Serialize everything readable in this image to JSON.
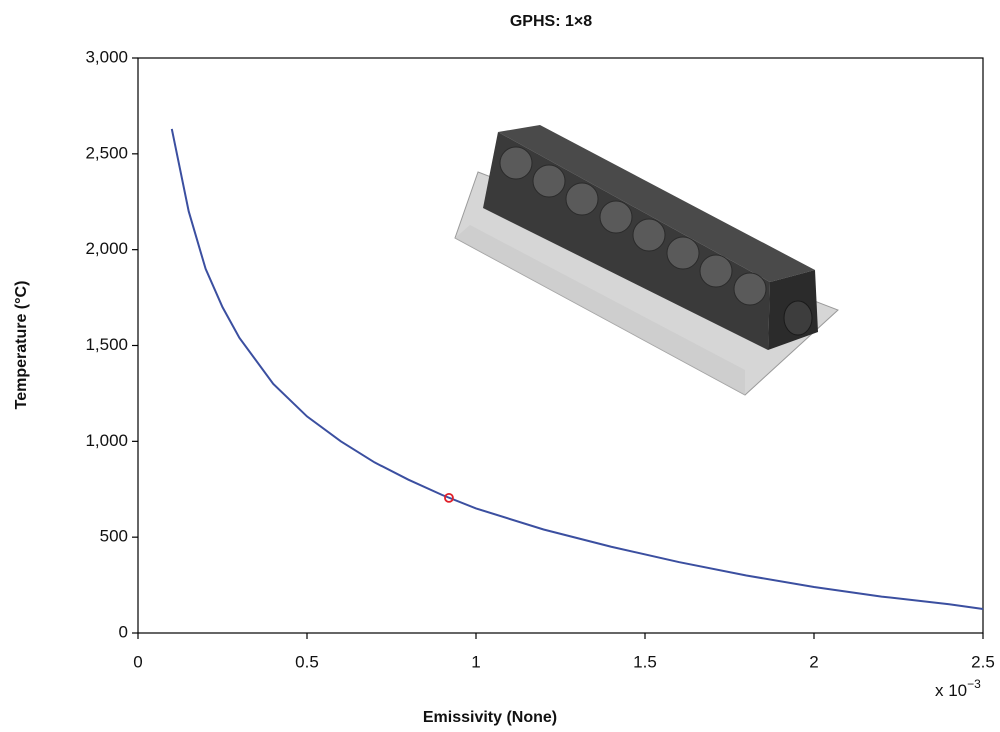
{
  "chart_data": {
    "type": "line",
    "title": "GPHS: 1×8",
    "x_label": "Emissivity (None)",
    "y_label": "Temperature (°C)",
    "x_multiplier": {
      "base": "x 10",
      "exponent": "−3"
    },
    "x": [
      0.1,
      0.15,
      0.2,
      0.25,
      0.3,
      0.4,
      0.5,
      0.6,
      0.7,
      0.8,
      0.9,
      1.0,
      1.2,
      1.4,
      1.6,
      1.8,
      2.0,
      2.2,
      2.4,
      2.5
    ],
    "series": [
      {
        "color": "#3b4fa0",
        "values": [
          2630,
          2200,
          1900,
          1700,
          1540,
          1300,
          1130,
          1000,
          890,
          800,
          720,
          650,
          540,
          450,
          370,
          300,
          240,
          190,
          150,
          125
        ]
      }
    ],
    "marker": {
      "x": 0.92,
      "y": 705,
      "color": "#e0202a"
    },
    "xlim": [
      0,
      2.5
    ],
    "xticks": [
      0,
      0.5,
      1,
      1.5,
      2,
      2.5
    ],
    "ylim": [
      0,
      3000
    ],
    "yticks": [
      0,
      500,
      {
        "value": 1000,
        "label": "1,000"
      },
      {
        "value": 1500,
        "label": "1,500"
      },
      {
        "value": 2000,
        "label": "2,000"
      },
      {
        "value": 2500,
        "label": "2,500"
      },
      {
        "value": 3000,
        "label": "3,000"
      }
    ],
    "grid": false
  }
}
